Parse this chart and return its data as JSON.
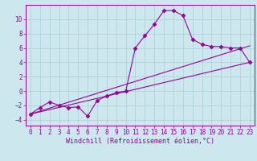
{
  "xlabel": "Windchill (Refroidissement éolien,°C)",
  "bg_color": "#cce8ee",
  "grid_color": "#aacdd4",
  "line_color": "#990099",
  "xlim": [
    -0.5,
    23.5
  ],
  "ylim": [
    -4.8,
    12.0
  ],
  "xticks": [
    0,
    1,
    2,
    3,
    4,
    5,
    6,
    7,
    8,
    9,
    10,
    11,
    12,
    13,
    14,
    15,
    16,
    17,
    18,
    19,
    20,
    21,
    22,
    23
  ],
  "yticks": [
    -4,
    -2,
    0,
    2,
    4,
    6,
    8,
    10
  ],
  "line1_x": [
    0,
    1,
    2,
    3,
    4,
    5,
    6,
    7,
    8,
    9,
    10,
    11,
    12,
    13,
    14,
    15,
    16,
    17,
    18,
    19,
    20,
    21,
    22,
    23
  ],
  "line1_y": [
    -3.2,
    -2.3,
    -1.5,
    -2.0,
    -2.3,
    -2.2,
    -3.5,
    -1.3,
    -0.7,
    -0.2,
    0.0,
    6.0,
    7.7,
    9.3,
    11.2,
    11.2,
    10.5,
    7.2,
    6.5,
    6.2,
    6.2,
    6.0,
    6.0,
    4.0
  ],
  "line2_x": [
    0,
    23
  ],
  "line2_y": [
    -3.2,
    4.0
  ],
  "line3_x": [
    0,
    23
  ],
  "line3_y": [
    -3.2,
    6.3
  ],
  "marker": "D",
  "marker_size": 2.5,
  "tick_fontsize": 5.5,
  "xlabel_fontsize": 6.0
}
